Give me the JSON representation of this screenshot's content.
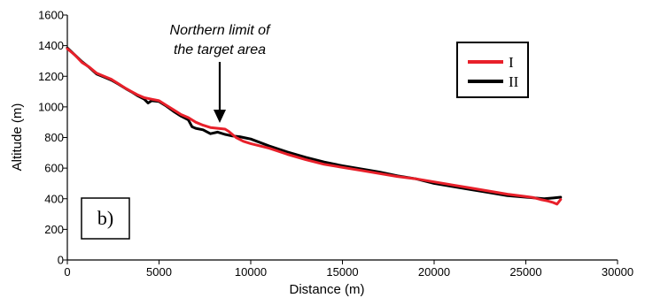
{
  "chart_data": {
    "type": "line",
    "xlabel": "Distance (m)",
    "ylabel": "Altitude (m)",
    "xlim": [
      0,
      30000
    ],
    "ylim": [
      0,
      1600
    ],
    "xticks": [
      0,
      5000,
      10000,
      15000,
      20000,
      25000,
      30000
    ],
    "yticks": [
      0,
      200,
      400,
      600,
      800,
      1000,
      1200,
      1400,
      1600
    ],
    "grid": false,
    "legend_position": "top-right",
    "annotation": {
      "lines": [
        "Northern limit of",
        "the target area"
      ],
      "x": 8300,
      "y": 880
    },
    "panel_label": "b)",
    "series": [
      {
        "name": "I",
        "color": "#e8202a",
        "x": [
          0,
          400,
          800,
          1200,
          1600,
          2000,
          2400,
          2800,
          3200,
          3500,
          3800,
          4200,
          4600,
          5000,
          5400,
          5800,
          6200,
          6600,
          7000,
          7400,
          7800,
          8200,
          8600,
          8800,
          9200,
          9600,
          10000,
          11000,
          12000,
          13000,
          14000,
          15000,
          16000,
          17000,
          18000,
          19000,
          20000,
          21000,
          22000,
          23000,
          24000,
          25000,
          25400,
          25800,
          26200,
          26500,
          26700,
          26900
        ],
        "values": [
          1380,
          1340,
          1290,
          1260,
          1220,
          1200,
          1180,
          1150,
          1120,
          1100,
          1080,
          1060,
          1050,
          1040,
          1010,
          980,
          950,
          930,
          900,
          880,
          865,
          860,
          855,
          840,
          800,
          775,
          760,
          730,
          690,
          655,
          625,
          605,
          585,
          565,
          545,
          530,
          510,
          490,
          470,
          450,
          430,
          415,
          408,
          395,
          385,
          375,
          365,
          395
        ]
      },
      {
        "name": "II",
        "color": "#000000",
        "x": [
          0,
          400,
          800,
          1200,
          1600,
          2000,
          2400,
          2800,
          3200,
          3500,
          3800,
          4200,
          4400,
          4600,
          5000,
          5400,
          5800,
          6200,
          6600,
          6800,
          7000,
          7400,
          7800,
          8200,
          8600,
          9000,
          9400,
          9800,
          10000,
          11000,
          12000,
          13000,
          14000,
          15000,
          16000,
          17000,
          18000,
          19000,
          20000,
          21000,
          22000,
          23000,
          24000,
          25000,
          25500,
          26000,
          26500,
          26900
        ],
        "values": [
          1385,
          1340,
          1295,
          1258,
          1215,
          1195,
          1175,
          1148,
          1118,
          1098,
          1075,
          1050,
          1025,
          1040,
          1035,
          1005,
          970,
          940,
          915,
          870,
          860,
          850,
          825,
          835,
          820,
          810,
          805,
          795,
          790,
          745,
          705,
          670,
          640,
          615,
          595,
          575,
          550,
          530,
          500,
          480,
          460,
          440,
          420,
          410,
          405,
          400,
          405,
          410
        ]
      }
    ]
  }
}
